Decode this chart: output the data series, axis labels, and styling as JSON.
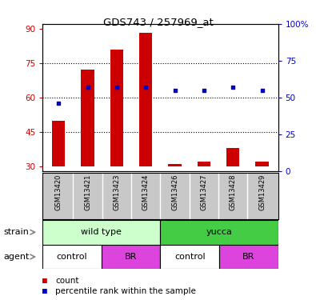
{
  "title": "GDS743 / 257969_at",
  "samples": [
    "GSM13420",
    "GSM13421",
    "GSM13423",
    "GSM13424",
    "GSM13426",
    "GSM13427",
    "GSM13428",
    "GSM13429"
  ],
  "counts": [
    50,
    72,
    81,
    88,
    31,
    32,
    38,
    32
  ],
  "percentiles": [
    46,
    57,
    57,
    57,
    55,
    55,
    57,
    55
  ],
  "ylim_left": [
    28,
    92
  ],
  "ylim_right": [
    0,
    100
  ],
  "yticks_left": [
    30,
    45,
    60,
    75,
    90
  ],
  "yticks_right": [
    0,
    25,
    50,
    75,
    100
  ],
  "bar_color": "#cc0000",
  "dot_color": "#0000cc",
  "bar_bottom": 30,
  "strain_wt_color": "#ccffcc",
  "strain_yucca_color": "#44cc44",
  "agent_control_color": "#ffffff",
  "agent_br_color": "#dd44dd",
  "background_color": "#ffffff",
  "tick_color_left": "#cc0000",
  "tick_color_right": "#0000cc",
  "xlabel_bg": "#c8c8c8",
  "grid_yticks": [
    45,
    60,
    75
  ]
}
